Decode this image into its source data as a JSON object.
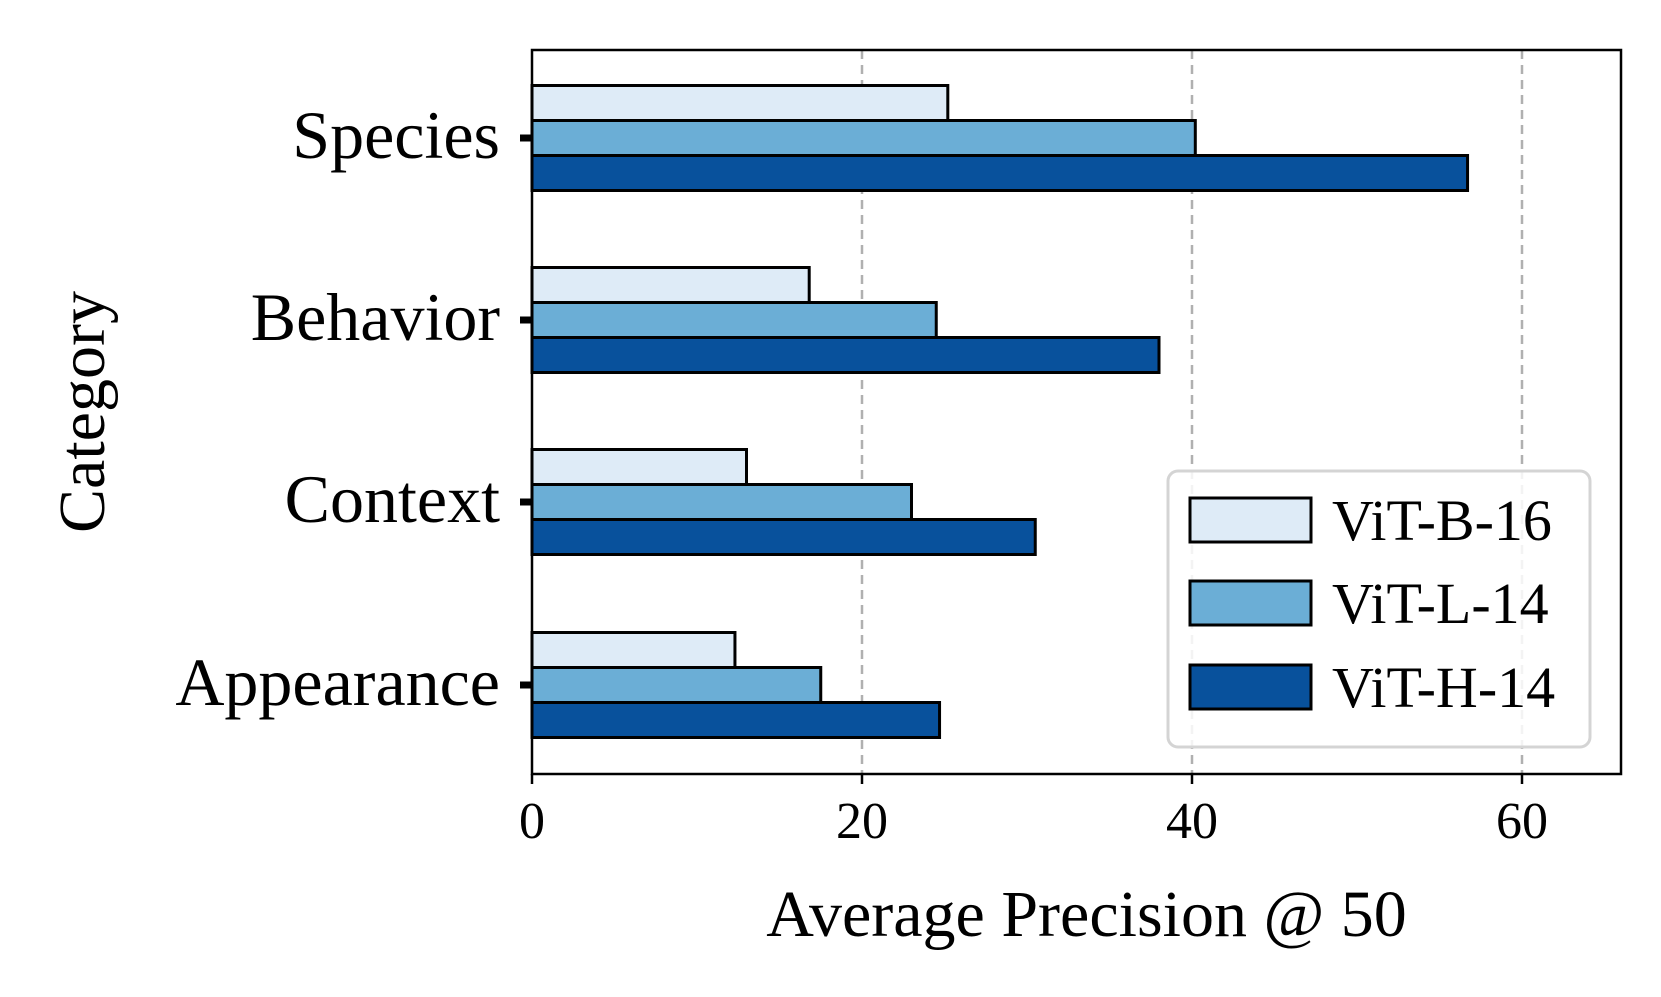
{
  "chart_data": {
    "type": "bar",
    "orientation": "horizontal",
    "categories": [
      "Appearance",
      "Context",
      "Behavior",
      "Species"
    ],
    "series": [
      {
        "name": "ViT-B-16",
        "color": "#deebf7",
        "values": [
          12.3,
          13.0,
          16.8,
          25.2
        ]
      },
      {
        "name": "ViT-L-14",
        "color": "#6baed6",
        "values": [
          17.5,
          23.0,
          24.5,
          40.2
        ]
      },
      {
        "name": "ViT-H-14",
        "color": "#08519c",
        "values": [
          24.7,
          30.5,
          38.0,
          56.7
        ]
      }
    ],
    "xlabel": "Average Precision @ 50",
    "ylabel": "Category",
    "xlim": [
      0,
      66
    ],
    "xticks": [
      0,
      20,
      40,
      60
    ],
    "grid": "x-dashed",
    "legend": {
      "position": "lower-right",
      "entries": [
        "ViT-B-16",
        "ViT-L-14",
        "ViT-H-14"
      ]
    },
    "edgecolor": "#000000",
    "gridcolor": "#b0b0b0"
  }
}
